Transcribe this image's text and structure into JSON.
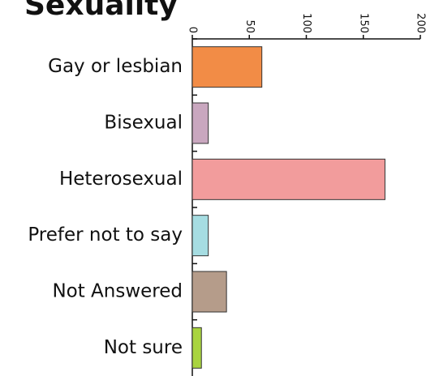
{
  "chart_data": {
    "type": "hbar",
    "title": "Sexuality",
    "categories": [
      "Gay or lesbian",
      "Bisexual",
      "Heterosexual",
      "Prefer not to say",
      "Not Answered",
      "Not sure"
    ],
    "values": [
      61,
      14,
      169,
      14,
      30,
      8
    ],
    "colors": [
      "#f28c46",
      "#c9a7bf",
      "#f29c9c",
      "#a6dde2",
      "#b59c8a",
      "#a9d43f"
    ],
    "xlim": [
      0,
      200
    ],
    "xticks": [
      0,
      50,
      100,
      150,
      200
    ]
  }
}
